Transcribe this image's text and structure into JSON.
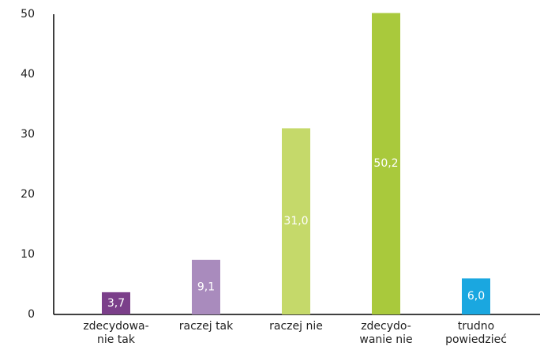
{
  "chart_data": {
    "type": "bar",
    "categories": [
      "zdecydowa-\nnie tak",
      "raczej tak",
      "raczej nie",
      "zdecydo-\nwanie nie",
      "trudno\npowiedzieć"
    ],
    "values": [
      3.7,
      9.1,
      31.0,
      50.2,
      6.0
    ],
    "value_labels": [
      "3,7",
      "9,1",
      "31,0",
      "50,2",
      "6,0"
    ],
    "colors": [
      "#7b3f8a",
      "#a98bbd",
      "#c5d96a",
      "#a9c93c",
      "#1aa7e0"
    ],
    "ylim": [
      0,
      50
    ],
    "yticks": [
      0,
      10,
      20,
      30,
      40,
      50
    ],
    "grid": false
  }
}
